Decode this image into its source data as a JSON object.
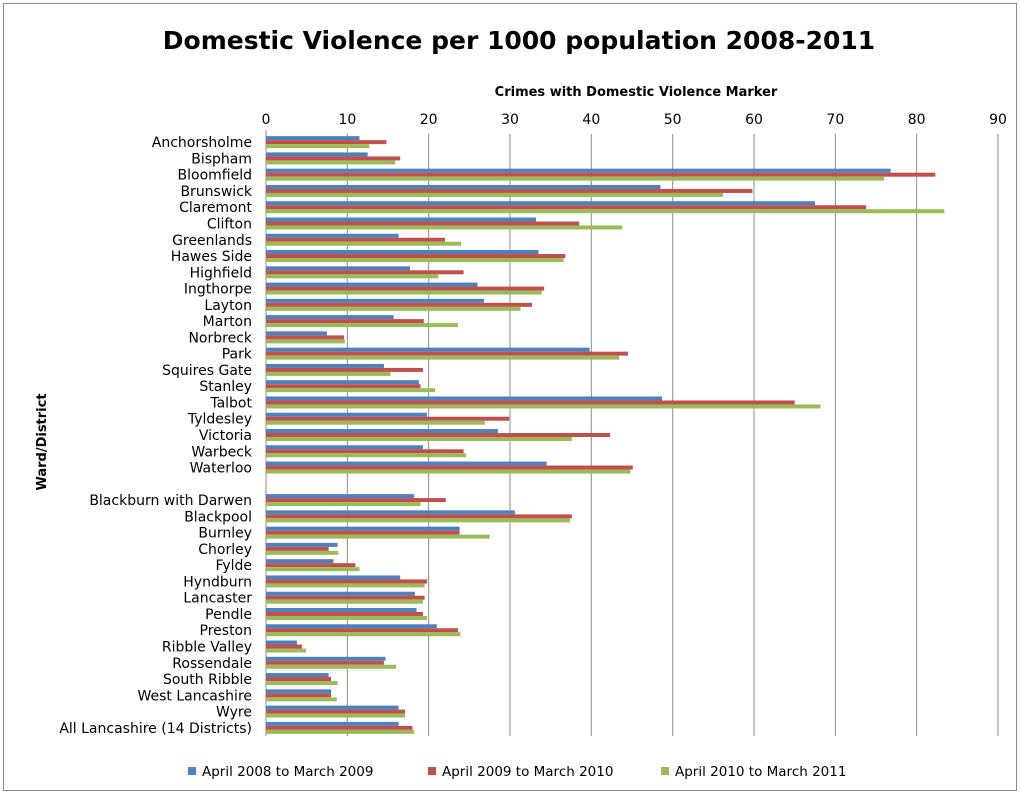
{
  "chart_data": {
    "type": "bar",
    "orientation": "horizontal",
    "title": "Domestic Violence per 1000 population 2008-2011",
    "xlabel": "Crimes with Domestic Violence Marker",
    "ylabel": "Ward/District",
    "xlim": [
      0,
      90
    ],
    "x_ticks": [
      "0",
      "10",
      "20",
      "30",
      "40",
      "50",
      "60",
      "70",
      "80",
      "90"
    ],
    "grid": true,
    "legend_position": "bottom",
    "categories": [
      "Anchorsholme",
      "Bispham",
      "Bloomfield",
      "Brunswick",
      "Claremont",
      "Clifton",
      "Greenlands",
      "Hawes Side",
      "Highfield",
      "Ingthorpe",
      "Layton",
      "Marton",
      "Norbreck",
      "Park",
      "Squires Gate",
      "Stanley",
      "Talbot",
      "Tyldesley",
      "Victoria",
      "Warbeck",
      "Waterloo",
      "",
      "Blackburn with Darwen",
      "Blackpool",
      "Burnley",
      "Chorley",
      "Fylde",
      "Hyndburn",
      "Lancaster",
      "Pendle",
      "Preston",
      "Ribble Valley",
      "Rossendale",
      "South Ribble",
      "West Lancashire",
      "Wyre",
      "All Lancashire (14 Districts)"
    ],
    "series": [
      {
        "name": "April 2008 to March 2009",
        "color": "#4F81BD",
        "values": [
          11.5,
          12.5,
          76.8,
          48.5,
          67.5,
          33.2,
          16.3,
          33.5,
          17.7,
          26.0,
          26.8,
          15.7,
          7.5,
          39.8,
          14.5,
          18.8,
          48.7,
          19.8,
          28.5,
          19.3,
          34.5,
          null,
          18.2,
          30.6,
          23.8,
          8.8,
          8.3,
          16.5,
          18.3,
          18.5,
          21.0,
          3.8,
          14.7,
          7.7,
          8.0,
          16.3,
          16.3
        ]
      },
      {
        "name": "April 2009 to March 2010",
        "color": "#C0504D",
        "values": [
          14.8,
          16.5,
          82.3,
          59.8,
          73.8,
          38.5,
          22.0,
          36.8,
          24.3,
          34.2,
          32.7,
          19.4,
          9.6,
          44.5,
          19.3,
          19.0,
          65.0,
          29.9,
          42.3,
          24.3,
          45.1,
          null,
          22.1,
          37.6,
          23.8,
          7.7,
          11.0,
          19.8,
          19.5,
          19.3,
          23.6,
          4.4,
          14.5,
          8.0,
          8.0,
          17.1,
          18.0
        ]
      },
      {
        "name": "April 2010 to March 2011",
        "color": "#9BBB59",
        "values": [
          12.7,
          15.9,
          76.0,
          56.2,
          83.4,
          43.8,
          24.0,
          36.6,
          21.2,
          33.9,
          31.3,
          23.6,
          9.7,
          43.4,
          15.3,
          20.8,
          68.2,
          26.9,
          37.6,
          24.6,
          44.8,
          null,
          19.0,
          37.4,
          27.5,
          8.9,
          11.5,
          19.5,
          19.3,
          19.8,
          23.9,
          4.9,
          16.0,
          8.8,
          8.7,
          17.1,
          18.2
        ]
      }
    ]
  }
}
